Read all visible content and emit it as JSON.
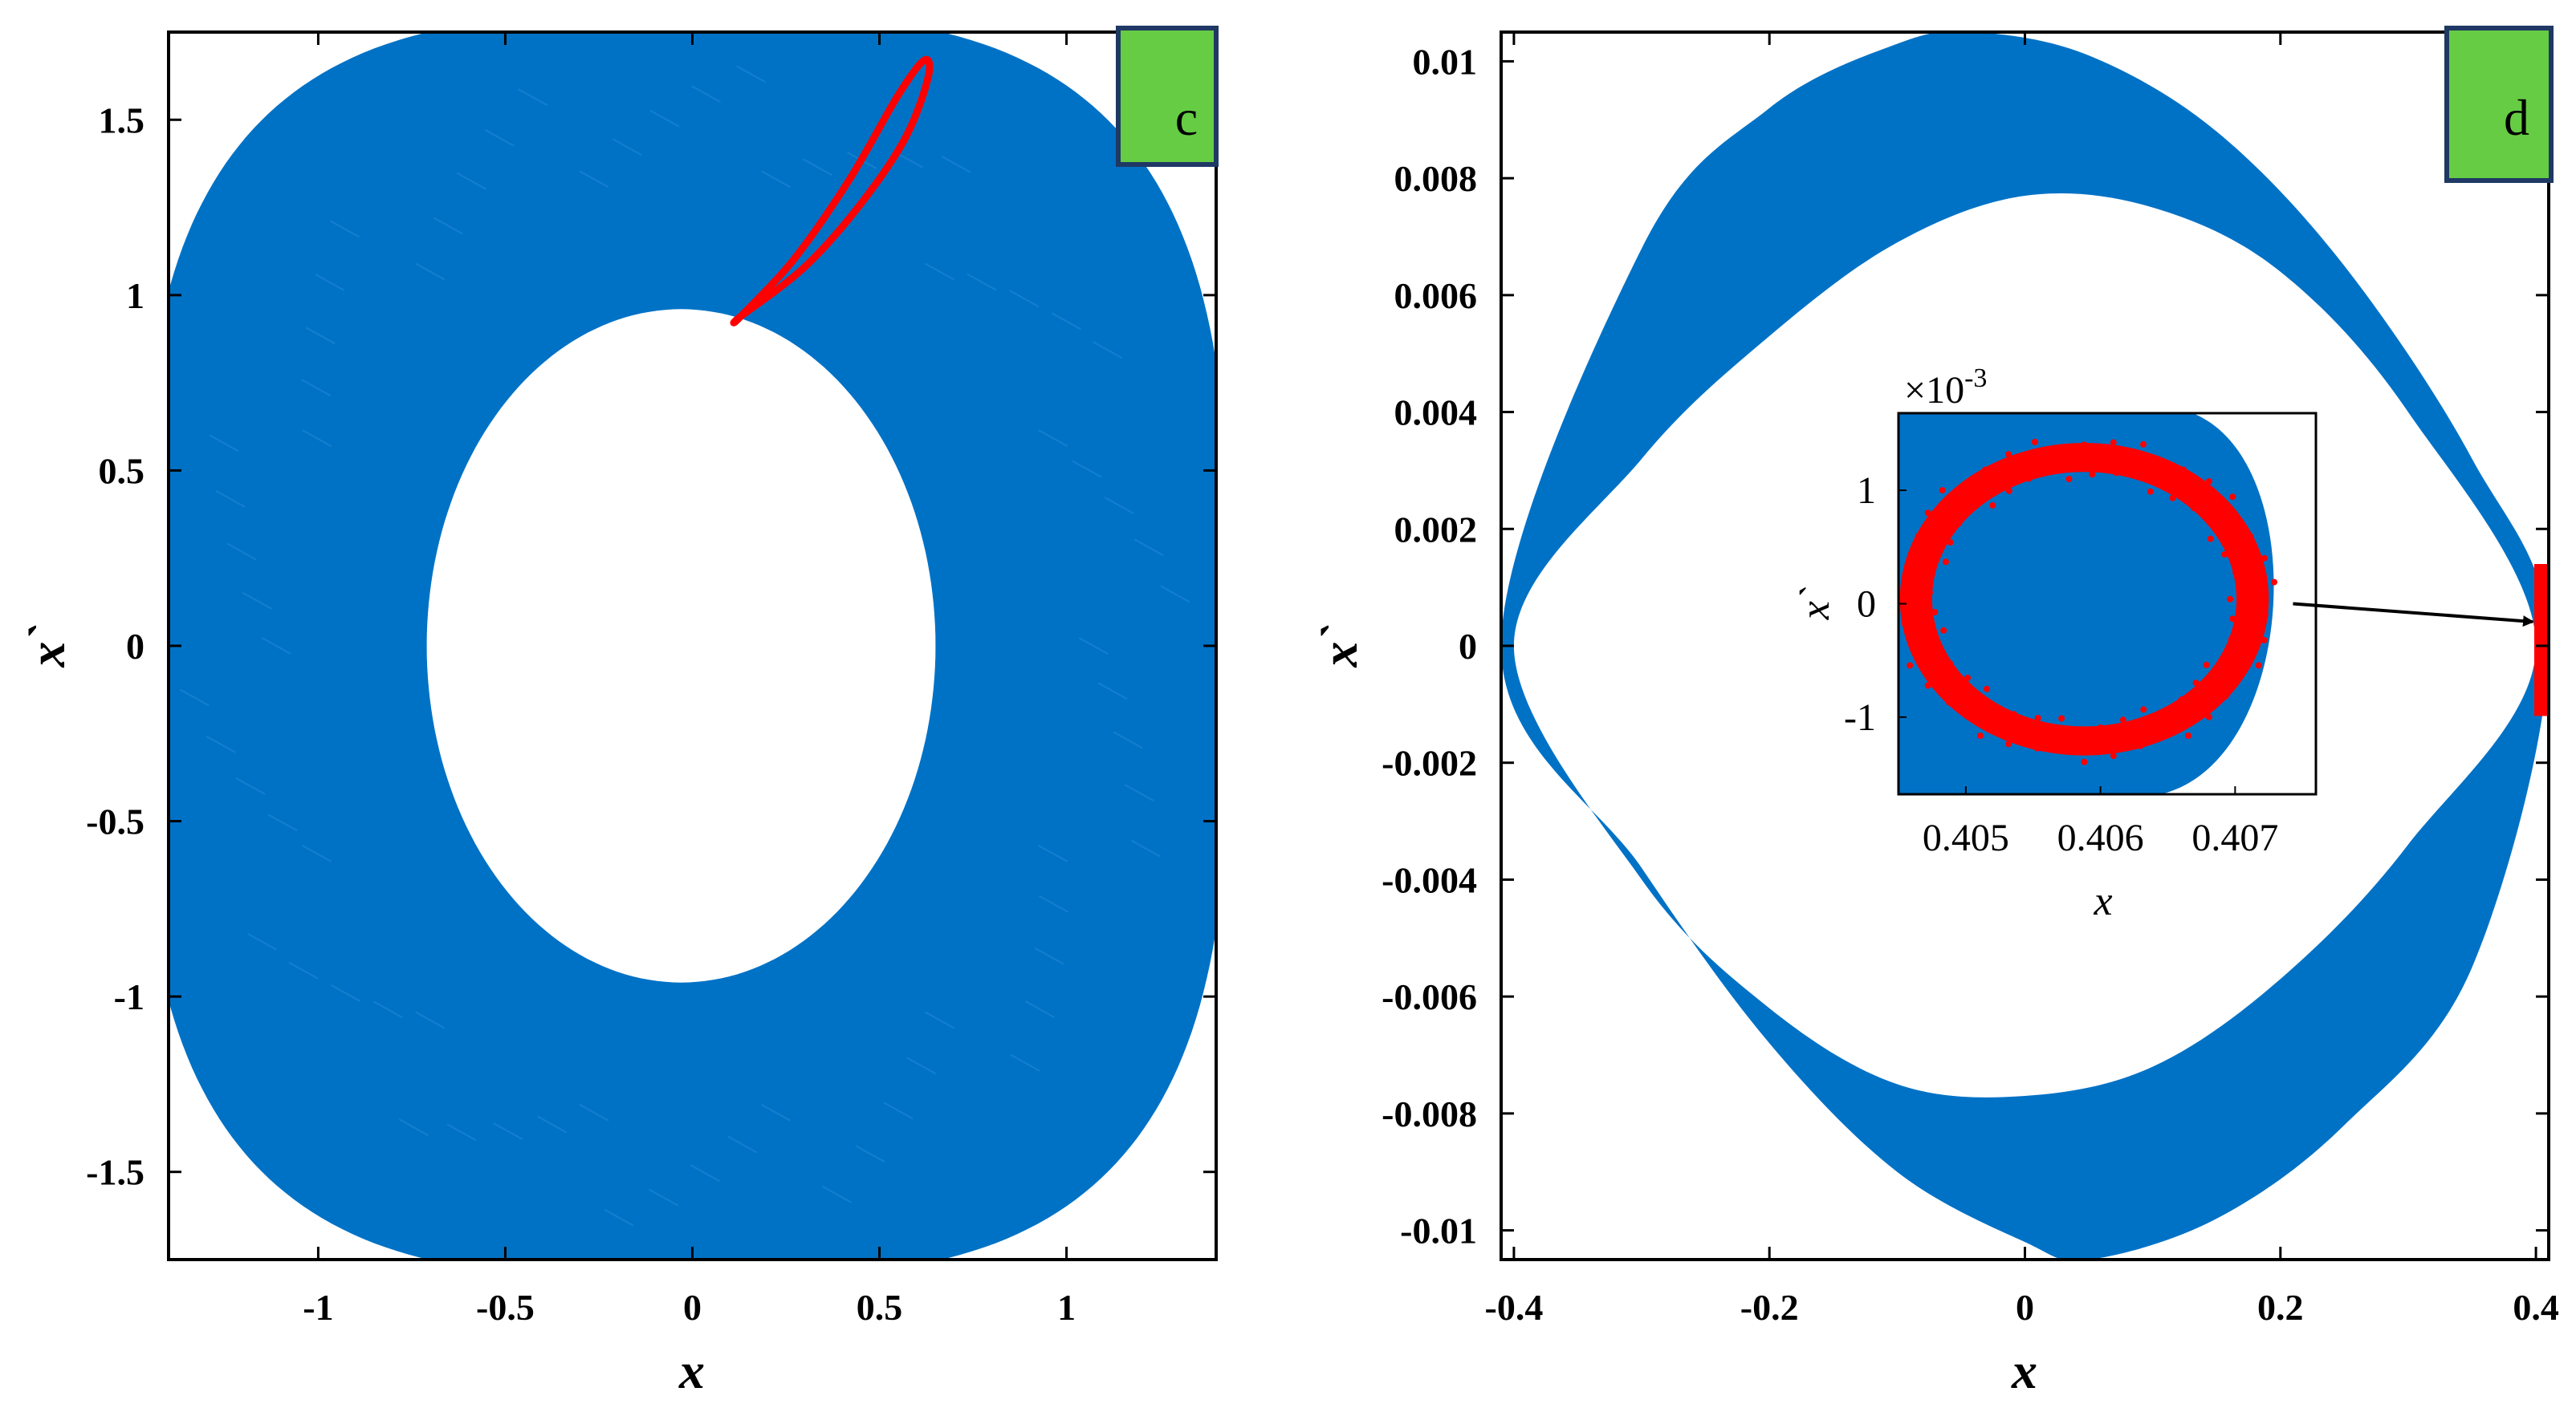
{
  "chart_data": [
    {
      "type": "scatter",
      "panel": "c",
      "xlabel": "x",
      "ylabel": "x`",
      "xlim": [
        -1.4,
        1.4
      ],
      "ylim": [
        -1.75,
        1.75
      ],
      "xticks": [
        -1,
        -0.5,
        0,
        0.5,
        1
      ],
      "xtick_labels": [
        "-1",
        "-0.5",
        "0",
        "0.5",
        "1"
      ],
      "yticks": [
        -1.5,
        -1,
        -0.5,
        0,
        0.5,
        1,
        1.5
      ],
      "ytick_labels": [
        "-1.5",
        "-1",
        "-0.5",
        "0",
        "0.5",
        "1",
        "1.5"
      ],
      "grid": false,
      "series": [
        {
          "kind": "annulus",
          "color": "#0072c6",
          "outer": {
            "center": [
              -0.02,
              0.0
            ],
            "half_width": 1.4,
            "half_height": 1.75
          },
          "inner": {
            "center": [
              -0.03,
              0.0
            ],
            "half_width": 0.68,
            "half_height": 0.96
          }
        },
        {
          "kind": "loop",
          "color": "#ff0000",
          "x": [
            0.13,
            0.3,
            0.45,
            0.57,
            0.63,
            0.62,
            0.55,
            0.42,
            0.27,
            0.13
          ],
          "y": [
            0.94,
            1.08,
            1.26,
            1.45,
            1.62,
            1.67,
            1.57,
            1.33,
            1.1,
            0.94
          ]
        }
      ]
    },
    {
      "type": "scatter",
      "panel": "d",
      "xlabel": "x",
      "ylabel": "x`",
      "xlim": [
        -0.41,
        0.41
      ],
      "ylim": [
        -0.0105,
        0.0105
      ],
      "xticks": [
        -0.4,
        -0.2,
        0,
        0.2,
        0.4
      ],
      "xtick_labels": [
        "-0.4",
        "-0.2",
        "0",
        "0.2",
        "0.4"
      ],
      "yticks": [
        -0.01,
        -0.008,
        -0.006,
        -0.004,
        -0.002,
        0,
        0.002,
        0.004,
        0.006,
        0.008,
        0.01
      ],
      "ytick_labels": [
        "-0.01",
        "-0.008",
        "-0.006",
        "-0.004",
        "-0.002",
        "0",
        "0.002",
        "0.004",
        "0.006",
        "0.008",
        "0.01"
      ],
      "grid": false,
      "series": [
        {
          "kind": "lens-band",
          "color": "#0072c6",
          "outer_top": {
            "x": [
              -0.41,
              -0.3,
              -0.2,
              -0.1,
              -0.04,
              0.05,
              0.15,
              0.25,
              0.35,
              0.41
            ],
            "y": [
              0.0,
              0.0068,
              0.0092,
              0.0103,
              0.0105,
              0.0101,
              0.0088,
              0.0065,
              0.0032,
              0.0
            ]
          },
          "inner_top": {
            "x": [
              -0.4,
              -0.3,
              -0.2,
              -0.1,
              0.0,
              0.1,
              0.2,
              0.3,
              0.4
            ],
            "y": [
              0.0,
              0.0032,
              0.0053,
              0.0069,
              0.0077,
              0.0075,
              0.0064,
              0.004,
              0.0
            ]
          },
          "outer_bottom": {
            "x": [
              -0.41,
              -0.3,
              -0.2,
              -0.1,
              0.0,
              0.05,
              0.15,
              0.25,
              0.35,
              0.41
            ],
            "y": [
              0.0,
              -0.0038,
              -0.0068,
              -0.009,
              -0.0102,
              -0.0105,
              -0.0098,
              -0.0082,
              -0.0055,
              0.0
            ]
          },
          "inner_bottom": {
            "x": [
              -0.4,
              -0.3,
              -0.2,
              -0.1,
              0.0,
              0.1,
              0.2,
              0.3,
              0.4
            ],
            "y": [
              0.0,
              -0.004,
              -0.0062,
              -0.0075,
              -0.0077,
              -0.0072,
              -0.0057,
              -0.0034,
              0.0
            ]
          }
        },
        {
          "kind": "strip",
          "color": "#ff0000",
          "x": [
            0.406,
            0.406
          ],
          "y": [
            -0.0012,
            0.0014
          ]
        }
      ],
      "inset": {
        "xlabel": "x",
        "ylabel": "x`",
        "xlim": [
          0.4045,
          0.4076
        ],
        "ylim": [
          -0.00168,
          0.00168
        ],
        "xticks": [
          0.405,
          0.406,
          0.407
        ],
        "xtick_labels": [
          "0.405",
          "0.406",
          "0.407"
        ],
        "yticks": [
          -0.001,
          0,
          0.001
        ],
        "ytick_labels": [
          "-1",
          "0",
          "1"
        ],
        "exponent_label": "×10",
        "exponent_value": "-3",
        "blue_region_right_edge_x": 0.4074,
        "red_ring": {
          "center": [
            0.40588,
            4e-05
          ],
          "radius_x": 0.00125,
          "radius_y": 0.00125,
          "band": 0.00012
        },
        "arrow_from": [
          0.4074,
          0.0
        ],
        "arrow_to": [
          0.406,
          0.0
        ]
      }
    }
  ]
}
